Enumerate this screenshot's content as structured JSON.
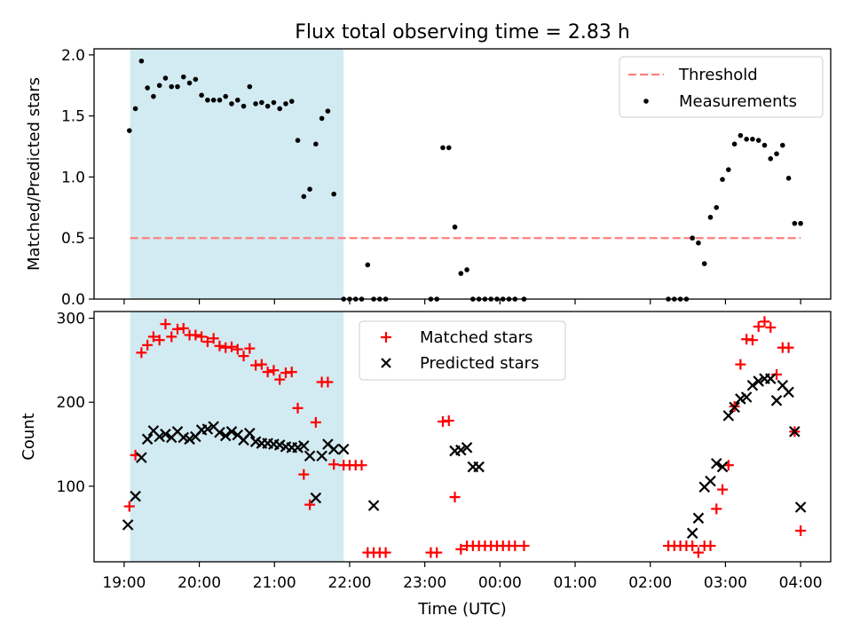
{
  "title": "Flux total observing time = 2.83 h",
  "colors": {
    "threshold": "#ff7f7f",
    "measurements": "#000000",
    "matched": "#ff0000",
    "predicted": "#000000",
    "shade": "#add8e6"
  },
  "chart_data": [
    {
      "type": "scatter",
      "ylabel": "Matched/Predicted stars",
      "xlim": [
        18.6,
        28.4
      ],
      "ylim": [
        0,
        2.05
      ],
      "yticks": [
        0.0,
        0.5,
        1.0,
        1.5,
        2.0
      ],
      "ytick_labels": [
        "0.0",
        "0.5",
        "1.0",
        "1.5",
        "2.0"
      ],
      "shaded_span": [
        19.08,
        21.92
      ],
      "legend_position": "upper right",
      "threshold": {
        "name": "Threshold",
        "value": 0.5,
        "x_range": [
          19.08,
          28.0
        ],
        "style": "dashed"
      },
      "series": [
        {
          "name": "Measurements",
          "marker": "dot",
          "x": [
            19.07,
            19.15,
            19.23,
            19.31,
            19.39,
            19.47,
            19.55,
            19.63,
            19.71,
            19.79,
            19.87,
            19.95,
            20.03,
            20.11,
            20.19,
            20.27,
            20.35,
            20.43,
            20.51,
            20.59,
            20.67,
            20.75,
            20.83,
            20.91,
            20.99,
            21.07,
            21.15,
            21.23,
            21.31,
            21.39,
            21.47,
            21.55,
            21.63,
            21.71,
            21.79,
            21.92,
            22.0,
            22.08,
            22.16,
            22.24,
            22.32,
            22.4,
            22.48,
            23.08,
            23.16,
            23.24,
            23.32,
            23.4,
            23.48,
            23.56,
            23.64,
            23.72,
            23.8,
            23.88,
            23.96,
            24.04,
            24.12,
            24.2,
            24.32,
            26.24,
            26.32,
            26.4,
            26.48,
            26.56,
            26.64,
            26.72,
            26.8,
            26.88,
            26.96,
            27.04,
            27.12,
            27.2,
            27.28,
            27.36,
            27.44,
            27.52,
            27.6,
            27.68,
            27.76,
            27.84,
            27.92,
            28.0
          ],
          "y": [
            1.38,
            1.56,
            1.95,
            1.73,
            1.66,
            1.75,
            1.81,
            1.74,
            1.74,
            1.82,
            1.77,
            1.8,
            1.67,
            1.63,
            1.63,
            1.63,
            1.66,
            1.6,
            1.63,
            1.58,
            1.74,
            1.6,
            1.61,
            1.58,
            1.61,
            1.56,
            1.6,
            1.62,
            1.3,
            0.84,
            0.9,
            1.27,
            1.48,
            1.54,
            0.86,
            0.0,
            0.0,
            0.0,
            0.0,
            0.28,
            0.0,
            0.0,
            0.0,
            0.0,
            0.0,
            1.24,
            1.24,
            0.59,
            0.21,
            0.24,
            0.0,
            0.0,
            0.0,
            0.0,
            0.0,
            0.0,
            0.0,
            0.0,
            0.0,
            0.0,
            0.0,
            0.0,
            0.0,
            0.5,
            0.46,
            0.29,
            0.67,
            0.75,
            0.98,
            1.06,
            1.27,
            1.34,
            1.31,
            1.31,
            1.3,
            1.26,
            1.15,
            1.19,
            1.26,
            0.99,
            0.62,
            0.62
          ]
        }
      ]
    },
    {
      "type": "scatter",
      "ylabel": "Count",
      "xlabel": "Time (UTC)",
      "xlim": [
        18.6,
        28.4
      ],
      "ylim": [
        10,
        308
      ],
      "yticks": [
        100,
        200,
        300
      ],
      "ytick_labels": [
        "100",
        "200",
        "300"
      ],
      "xticks": [
        19,
        20,
        21,
        22,
        23,
        24,
        25,
        26,
        27,
        28
      ],
      "xtick_labels": [
        "19:00",
        "20:00",
        "21:00",
        "22:00",
        "23:00",
        "00:00",
        "01:00",
        "02:00",
        "03:00",
        "04:00"
      ],
      "shaded_span": [
        19.08,
        21.92
      ],
      "legend_position": "upper center",
      "series": [
        {
          "name": "Matched stars",
          "marker": "plus",
          "x": [
            19.07,
            19.15,
            19.23,
            19.31,
            19.39,
            19.47,
            19.55,
            19.63,
            19.71,
            19.79,
            19.87,
            19.95,
            20.03,
            20.11,
            20.19,
            20.27,
            20.35,
            20.43,
            20.51,
            20.59,
            20.67,
            20.75,
            20.83,
            20.91,
            20.99,
            21.07,
            21.15,
            21.23,
            21.31,
            21.39,
            21.47,
            21.55,
            21.63,
            21.71,
            21.79,
            21.92,
            22.0,
            22.08,
            22.16,
            22.24,
            22.32,
            22.4,
            22.48,
            23.08,
            23.16,
            23.24,
            23.32,
            23.4,
            23.48,
            23.56,
            23.64,
            23.72,
            23.8,
            23.88,
            23.96,
            24.04,
            24.12,
            24.2,
            24.32,
            26.24,
            26.32,
            26.4,
            26.48,
            26.56,
            26.64,
            26.72,
            26.8,
            26.88,
            26.96,
            27.04,
            27.12,
            27.2,
            27.28,
            27.36,
            27.44,
            27.52,
            27.6,
            27.68,
            27.76,
            27.84,
            27.92,
            28.0
          ],
          "y": [
            76,
            137,
            259,
            268,
            278,
            274,
            293,
            278,
            287,
            288,
            280,
            280,
            278,
            272,
            276,
            267,
            265,
            266,
            263,
            255,
            264,
            244,
            245,
            236,
            238,
            227,
            235,
            236,
            193,
            114,
            78,
            176,
            224,
            224,
            126,
            125,
            125,
            125,
            125,
            21,
            21,
            21,
            21,
            21,
            21,
            177,
            178,
            87,
            25,
            29,
            29,
            29,
            29,
            29,
            29,
            29,
            29,
            29,
            29,
            29,
            29,
            29,
            29,
            29,
            21,
            29,
            29,
            73,
            96,
            125,
            195,
            245,
            275,
            274,
            290,
            296,
            289,
            233,
            265,
            265,
            165,
            47
          ]
        },
        {
          "name": "Predicted stars",
          "marker": "x",
          "x": [
            19.05,
            19.15,
            19.23,
            19.31,
            19.39,
            19.47,
            19.55,
            19.63,
            19.71,
            19.79,
            19.87,
            19.95,
            20.03,
            20.11,
            20.19,
            20.27,
            20.35,
            20.43,
            20.51,
            20.59,
            20.67,
            20.75,
            20.83,
            20.91,
            20.99,
            21.07,
            21.15,
            21.23,
            21.31,
            21.39,
            21.47,
            21.55,
            21.63,
            21.71,
            21.79,
            21.92,
            22.32,
            23.4,
            23.48,
            23.56,
            23.64,
            23.72,
            26.56,
            26.64,
            26.72,
            26.8,
            26.88,
            26.96,
            27.04,
            27.12,
            27.2,
            27.28,
            27.36,
            27.44,
            27.52,
            27.6,
            27.68,
            27.76,
            27.84,
            27.92,
            28.0
          ],
          "y": [
            54,
            88,
            134,
            156,
            166,
            159,
            162,
            158,
            165,
            158,
            156,
            159,
            167,
            168,
            171,
            164,
            160,
            165,
            161,
            155,
            163,
            153,
            151,
            151,
            150,
            149,
            147,
            146,
            146,
            148,
            136,
            86,
            136,
            150,
            144,
            144,
            77,
            142,
            143,
            146,
            123,
            123,
            44,
            62,
            99,
            106,
            127,
            123,
            184,
            194,
            204,
            206,
            220,
            225,
            228,
            228,
            202,
            220,
            212,
            165,
            75
          ]
        }
      ]
    }
  ]
}
